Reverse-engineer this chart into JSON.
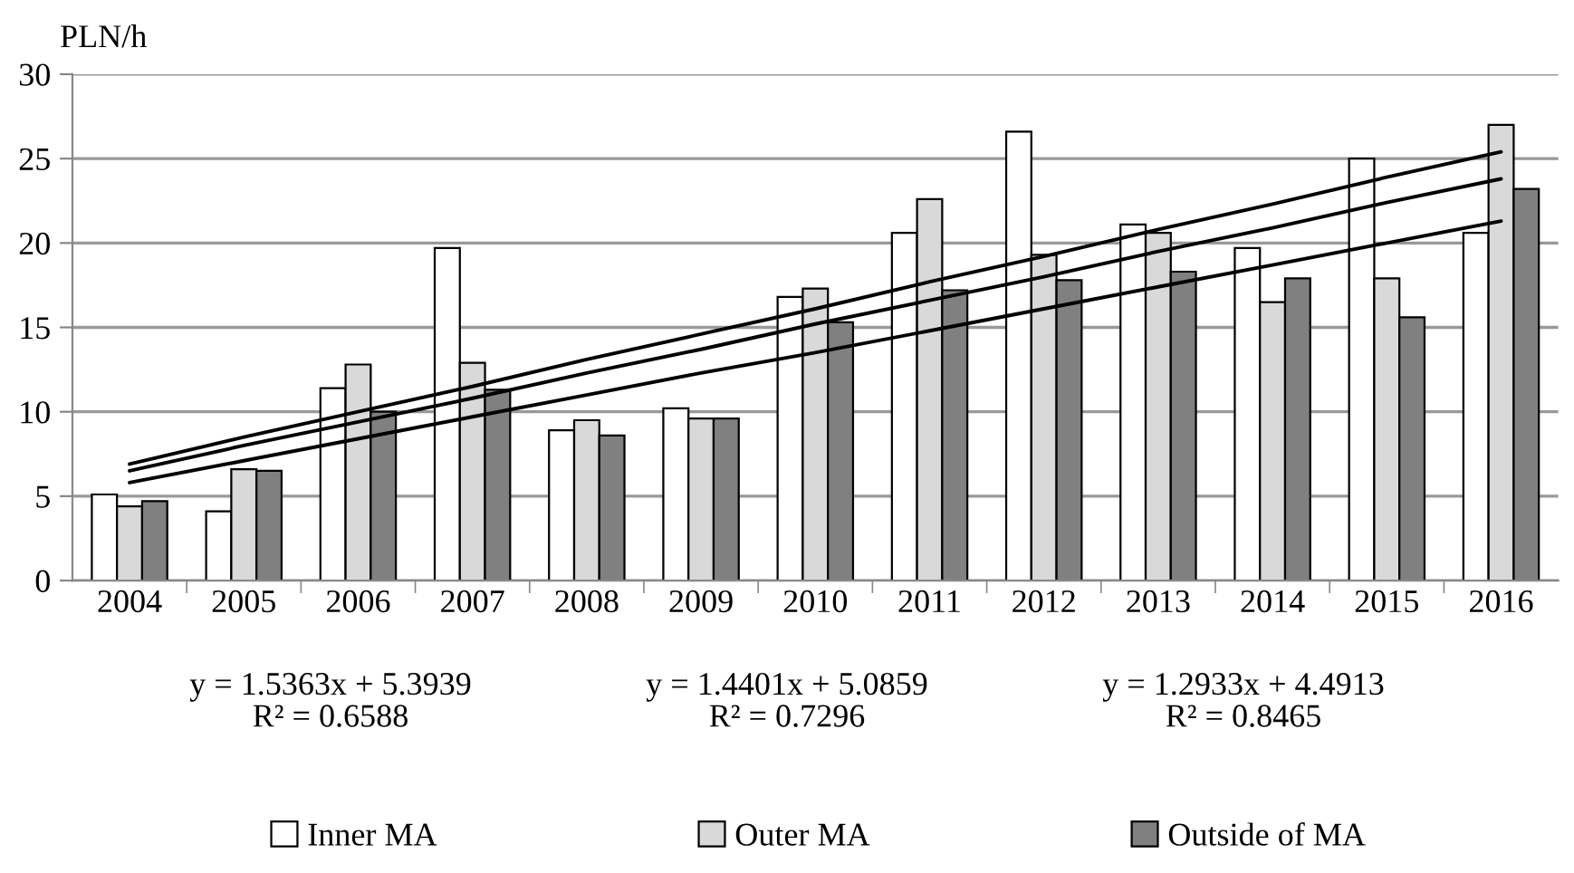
{
  "chart_data": {
    "type": "bar",
    "ylabel": "PLN/h",
    "categories": [
      "2004",
      "2005",
      "2006",
      "2007",
      "2008",
      "2009",
      "2010",
      "2011",
      "2012",
      "2013",
      "2014",
      "2015",
      "2016"
    ],
    "series": [
      {
        "name": "Inner MA",
        "color": "#ffffff",
        "values": [
          5.1,
          4.1,
          11.4,
          19.7,
          8.9,
          10.2,
          16.8,
          20.6,
          26.6,
          21.1,
          19.7,
          25.0,
          20.6
        ]
      },
      {
        "name": "Outer MA",
        "color": "#d9d9d9",
        "values": [
          4.4,
          6.6,
          12.8,
          12.9,
          9.5,
          9.6,
          17.3,
          22.6,
          19.3,
          20.6,
          16.5,
          17.9,
          27.0
        ]
      },
      {
        "name": "Outside of MA",
        "color": "#808080",
        "values": [
          4.7,
          6.5,
          10.0,
          11.3,
          8.6,
          9.6,
          15.3,
          17.2,
          17.8,
          18.3,
          17.9,
          15.6,
          23.2
        ]
      },
      {
        "type": "line",
        "color": "#000000",
        "values": [
          6.9,
          8.5,
          10.0,
          11.5,
          13.1,
          14.6,
          16.1,
          17.7,
          19.2,
          20.8,
          22.3,
          23.9,
          25.4
        ]
      },
      {
        "type": "line",
        "color": "#000000",
        "values": [
          6.5,
          8.0,
          9.4,
          10.8,
          12.3,
          13.7,
          15.2,
          16.6,
          18.0,
          19.5,
          20.9,
          22.4,
          23.8
        ]
      },
      {
        "type": "line",
        "color": "#000000",
        "values": [
          5.8,
          7.1,
          8.4,
          9.7,
          11.0,
          12.3,
          13.5,
          14.8,
          16.1,
          17.4,
          18.7,
          20.0,
          21.3
        ]
      }
    ],
    "ylim": [
      0,
      30
    ],
    "yticks": [
      0,
      5,
      10,
      15,
      20,
      25,
      30
    ],
    "grid": "y",
    "legend": "bottom",
    "annotations": [
      "y = 1.5363x + 5.3939\nR² = 0.6588",
      "y = 1.4401x + 5.0859\nR² = 0.7296",
      "y = 1.2933x + 4.4913\nR² = 0.8465"
    ]
  }
}
